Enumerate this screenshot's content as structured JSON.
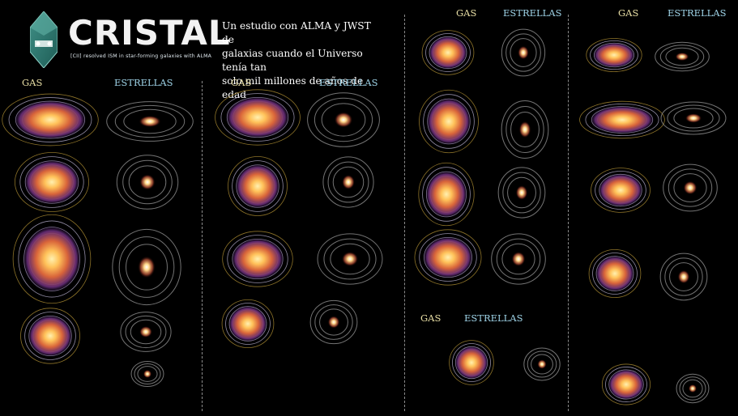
{
  "header": {
    "brand": "CRISTAL",
    "tagline": "[CII] resolved ISM in star-forming galaxies with ALMA",
    "subtitle_lines": [
      "Un estudio con ALMA y JWST de",
      "galaxias cuando el Universo tenía tan",
      "solo mil millones de años de edad"
    ]
  },
  "panel_labels": {
    "gas": "GAS",
    "stars": "ESTRELLAS"
  },
  "colors": {
    "gas_core": "#ffd27a",
    "gas_mid": "#e0783a",
    "gas_outer": "#6a2e7a",
    "gas_contour": "#c9a43a",
    "star_contour": "#9a9a9a",
    "label_gas": "#e9dfa5",
    "label_stars": "#9fd4e8"
  }
}
